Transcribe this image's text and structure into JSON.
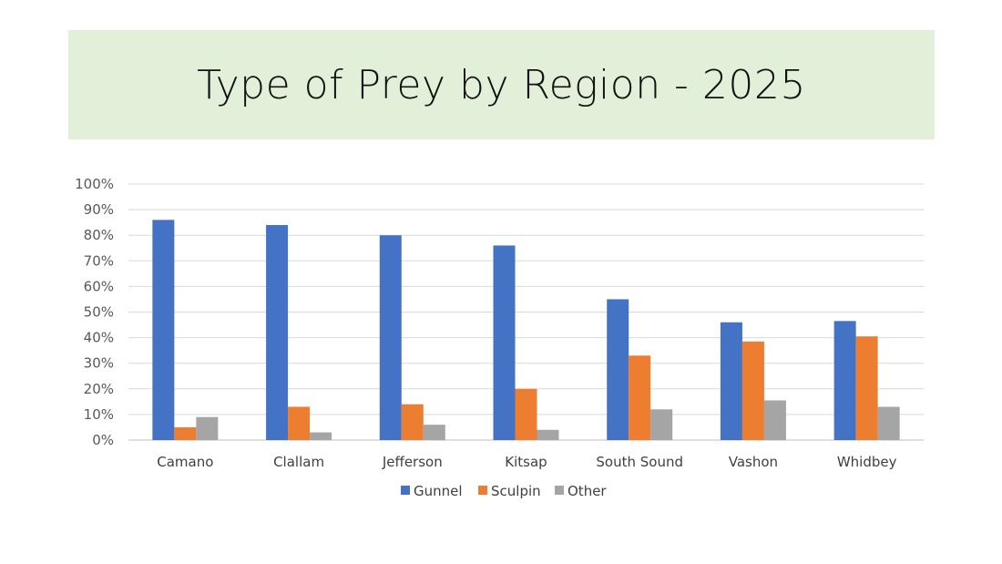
{
  "slide": {
    "title": "Type of Prey by Region - 2025"
  },
  "colors": {
    "title_band": "#e2efd9",
    "gunnel": "#4472c4",
    "sculpin": "#ed7d31",
    "other": "#a5a5a5"
  },
  "chart_data": {
    "type": "bar",
    "title": "Type of Prey by Region - 2025",
    "xlabel": "",
    "ylabel": "",
    "ylim": [
      0,
      100
    ],
    "y_ticks": [
      0,
      10,
      20,
      30,
      40,
      50,
      60,
      70,
      80,
      90,
      100
    ],
    "y_tick_format": "percent",
    "grid": true,
    "legend_position": "bottom",
    "categories": [
      "Camano",
      "Clallam",
      "Jefferson",
      "Kitsap",
      "South Sound",
      "Vashon",
      "Whidbey"
    ],
    "series": [
      {
        "name": "Gunnel",
        "color": "#4472c4",
        "values": [
          86,
          84,
          80,
          76,
          55,
          46,
          46.5
        ]
      },
      {
        "name": "Sculpin",
        "color": "#ed7d31",
        "values": [
          5,
          13,
          14,
          20,
          33,
          38.5,
          40.5
        ]
      },
      {
        "name": "Other",
        "color": "#a5a5a5",
        "values": [
          9,
          3,
          6,
          4,
          12,
          15.5,
          13
        ]
      }
    ]
  }
}
